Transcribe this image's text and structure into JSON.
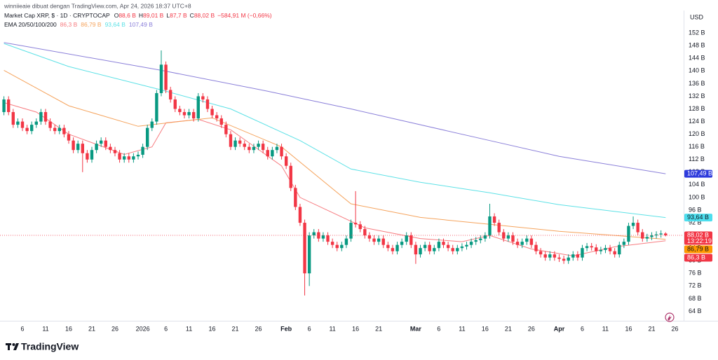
{
  "header": {
    "credit": "winniieaie dibuat dengan TradingView.com, Apr 24, 2026 18:37 UTC+8",
    "symbol": "Market Cap XRP, $ · 1D · CRYPTOCAP",
    "ohlc": [
      {
        "key": "O",
        "value": "88,6 B"
      },
      {
        "key": "H",
        "value": "89,01 B"
      },
      {
        "key": "L",
        "value": "87,7 B"
      },
      {
        "key": "C",
        "value": "88,02 B"
      }
    ],
    "change": "−584,91 M (−0,66%)",
    "indicator": "EMA 20/50/100/200",
    "currency": "USD"
  },
  "chart_data": {
    "type": "candlestick",
    "up_color": "#089981",
    "down_color": "#f23645",
    "xlim": [
      -0.85,
      146.9
    ],
    "ylim": [
      61,
      155.8
    ],
    "grid": false,
    "xticks": [
      {
        "value": 4,
        "label": "6"
      },
      {
        "value": 9,
        "label": "11"
      },
      {
        "value": 14,
        "label": "16"
      },
      {
        "value": 19,
        "label": "21"
      },
      {
        "value": 24,
        "label": "26"
      },
      {
        "value": 30,
        "label": "2026"
      },
      {
        "value": 35,
        "label": "6"
      },
      {
        "value": 40,
        "label": "11"
      },
      {
        "value": 45,
        "label": "16"
      },
      {
        "value": 50,
        "label": "21"
      },
      {
        "value": 55,
        "label": "26"
      },
      {
        "value": 61,
        "label": "Feb"
      },
      {
        "value": 66,
        "label": "6"
      },
      {
        "value": 71,
        "label": "11"
      },
      {
        "value": 76,
        "label": "16"
      },
      {
        "value": 81,
        "label": "21"
      },
      {
        "value": 89,
        "label": "Mar"
      },
      {
        "value": 94,
        "label": "6"
      },
      {
        "value": 99,
        "label": "11"
      },
      {
        "value": 104,
        "label": "16"
      },
      {
        "value": 109,
        "label": "21"
      },
      {
        "value": 114,
        "label": "26"
      },
      {
        "value": 120,
        "label": "Apr"
      },
      {
        "value": 125,
        "label": "6"
      },
      {
        "value": 130,
        "label": "11"
      },
      {
        "value": 135,
        "label": "16"
      },
      {
        "value": 140,
        "label": "21"
      },
      {
        "value": 145,
        "label": "26"
      }
    ],
    "yticks": [
      {
        "value": 64,
        "label": "64 B"
      },
      {
        "value": 68,
        "label": "68 B"
      },
      {
        "value": 72,
        "label": "72 B"
      },
      {
        "value": 76,
        "label": "76 B"
      },
      {
        "value": 80,
        "label": "80 B"
      },
      {
        "value": 84,
        "label": "84 B"
      },
      {
        "value": 88,
        "label": "88 B"
      },
      {
        "value": 92,
        "label": "92 B"
      },
      {
        "value": 96,
        "label": "96 B"
      },
      {
        "value": 100,
        "label": "100 B"
      },
      {
        "value": 104,
        "label": "104 B"
      },
      {
        "value": 108,
        "label": "108 B"
      },
      {
        "value": 112,
        "label": "112 B"
      },
      {
        "value": 116,
        "label": "116 B"
      },
      {
        "value": 120,
        "label": "120 B"
      },
      {
        "value": 124,
        "label": "124 B"
      },
      {
        "value": 128,
        "label": "128 B"
      },
      {
        "value": 132,
        "label": "132 B"
      },
      {
        "value": 136,
        "label": "136 B"
      },
      {
        "value": 140,
        "label": "140 B"
      },
      {
        "value": 144,
        "label": "144 B"
      },
      {
        "value": 148,
        "label": "148 B"
      },
      {
        "value": 152,
        "label": "152 B"
      }
    ],
    "open": [
      127,
      131,
      127,
      123,
      124,
      122,
      121,
      123,
      124,
      127,
      124,
      122,
      121,
      122,
      120,
      118,
      115,
      117,
      114,
      112,
      115,
      117,
      118,
      116,
      115,
      114,
      112,
      113,
      112,
      113,
      113.5,
      116,
      122,
      124,
      133,
      142,
      134,
      131,
      128,
      127,
      126,
      127,
      125,
      132,
      131,
      128,
      126,
      125,
      123,
      120,
      116,
      118,
      117,
      116,
      115,
      116,
      117,
      115,
      113,
      115,
      116,
      113,
      110,
      103,
      97,
      92,
      76,
      88,
      89,
      87,
      88,
      86,
      85,
      84,
      85,
      87,
      92,
      91.5,
      90,
      88,
      87,
      86,
      87,
      85,
      84,
      83,
      85,
      86,
      88,
      85,
      82,
      84,
      85,
      83,
      84,
      86,
      85,
      84,
      83,
      84,
      84.5,
      85,
      86,
      86.5,
      87,
      88,
      94,
      92,
      89,
      87,
      88,
      86,
      85,
      86,
      87,
      85,
      83,
      82,
      81,
      82,
      81,
      80.6,
      80,
      81,
      82,
      81,
      84,
      84.6,
      84.2,
      83,
      83.4,
      84,
      83,
      82,
      85,
      86,
      91,
      92,
      89,
      87,
      87.5,
      88,
      88.3,
      88.6
    ],
    "high": [
      132,
      132,
      128,
      125,
      125,
      123,
      124,
      125,
      128,
      128,
      125,
      123,
      123,
      123,
      121,
      119,
      118,
      118,
      115,
      116,
      118,
      119,
      119,
      117,
      116,
      115,
      114,
      114,
      114,
      114.5,
      117,
      123,
      125,
      134,
      146.5,
      143,
      135,
      132,
      129,
      128,
      128,
      128,
      133,
      133,
      132,
      129,
      127,
      126,
      124,
      121,
      119,
      119,
      118,
      117,
      117,
      118,
      118,
      116,
      116,
      117,
      117,
      114,
      111,
      104,
      98,
      93,
      89,
      90,
      90,
      89,
      89,
      87,
      86,
      86,
      88,
      93,
      102,
      92.5,
      91,
      89,
      88,
      88,
      88,
      86,
      85,
      86,
      87,
      89,
      89,
      86,
      85,
      86,
      86,
      85,
      87,
      87,
      86,
      85,
      85,
      85.5,
      86,
      87,
      87.5,
      88,
      89,
      98,
      95,
      93,
      90,
      89,
      89,
      87,
      87,
      88,
      88,
      86,
      84,
      83,
      83,
      83,
      82,
      81.6,
      82,
      83,
      83,
      85,
      85.6,
      85.6,
      85.2,
      84.4,
      85,
      85,
      84,
      86,
      87,
      92,
      94,
      93,
      90,
      88.5,
      89,
      89.3,
      89.6,
      89.01
    ],
    "low": [
      126,
      126,
      122,
      122,
      121,
      120,
      120,
      122,
      123,
      123,
      121,
      120,
      120,
      119,
      117,
      114,
      114,
      108,
      111,
      111,
      114,
      116,
      115,
      114,
      113,
      111,
      111,
      111,
      111,
      112,
      112.5,
      115,
      121,
      123,
      132,
      133,
      130,
      127,
      126,
      125,
      125,
      124,
      124,
      130,
      127,
      125,
      124,
      122,
      119,
      115,
      115,
      116,
      115,
      114,
      114,
      115,
      114,
      112,
      112,
      114,
      112,
      109,
      102,
      96,
      91,
      69,
      72,
      87,
      86,
      86,
      85,
      84,
      83,
      83,
      84,
      86,
      90.5,
      89,
      87,
      86,
      85,
      85,
      84,
      83,
      82,
      82,
      84,
      85,
      84,
      79,
      81,
      83,
      82,
      82,
      83,
      84,
      83,
      82,
      82,
      83,
      83.5,
      84,
      85,
      85.5,
      86,
      87,
      91,
      88,
      86,
      86,
      85,
      84,
      84,
      85,
      84,
      82,
      81,
      80,
      80,
      80,
      79.6,
      79,
      79,
      80,
      80,
      80,
      83,
      83.2,
      82,
      82,
      82.4,
      82,
      81,
      81,
      84,
      85,
      90,
      88,
      86,
      86,
      86.5,
      87,
      87.3,
      87.7
    ],
    "close": [
      131,
      127,
      123,
      124,
      122,
      121,
      123,
      124,
      127,
      124,
      122,
      121,
      122,
      120,
      118,
      115,
      117,
      114,
      112,
      115,
      117,
      118,
      116,
      115,
      114,
      112,
      113,
      112,
      113,
      113.5,
      116,
      122,
      124,
      133,
      142,
      134,
      131,
      128,
      127,
      126,
      127,
      125,
      132,
      131,
      128,
      126,
      125,
      123,
      120,
      116,
      118,
      117,
      116,
      115,
      116,
      117,
      115,
      113,
      115,
      116,
      113,
      110,
      103,
      97,
      92,
      76,
      88,
      89,
      87,
      88,
      86,
      85,
      84,
      85,
      87,
      92,
      91.5,
      90,
      88,
      87,
      86,
      87,
      85,
      84,
      83,
      85,
      86,
      88,
      85,
      82,
      84,
      85,
      83,
      84,
      86,
      85,
      84,
      83,
      84,
      84.5,
      85,
      86,
      86.5,
      87,
      88,
      94,
      92,
      89,
      87,
      88,
      86,
      85,
      86,
      87,
      85,
      83,
      82,
      81,
      82,
      81,
      80.6,
      80,
      81,
      82,
      81,
      84,
      84.6,
      84.2,
      83,
      83.4,
      84,
      83,
      82,
      85,
      86,
      91,
      92,
      89,
      87,
      87.5,
      88,
      88.3,
      88.6,
      88.02
    ],
    "close_label": "88,02 B",
    "countdown": "13:22:19",
    "series": [
      {
        "color": "#f77c80",
        "x": [
          0,
          7,
          14,
          26,
          32,
          35,
          42,
          49,
          60,
          64,
          70,
          78,
          90,
          99,
          105,
          114,
          123,
          132,
          143
        ],
        "values": [
          130,
          127,
          120,
          113.6,
          116,
          123.6,
          124.7,
          121.4,
          110,
          100,
          95.9,
          90.4,
          87,
          86,
          88,
          83.7,
          81.5,
          84.4,
          86.3
        ],
        "last_label": "86,3 B",
        "price_label": "86,3 B",
        "label_color": "#f23645"
      },
      {
        "color": "#f5a35c",
        "x": [
          0,
          14,
          29,
          45,
          60,
          75,
          90,
          105,
          120,
          143
        ],
        "values": [
          140.2,
          129,
          122.5,
          125.2,
          116,
          98,
          93.7,
          91.5,
          89.3,
          86.79
        ],
        "last_label": "86,79 B",
        "price_label": "86,79 B",
        "label_color": "#ff9800"
      },
      {
        "color": "#5ce1e6",
        "x": [
          0,
          14,
          34,
          49,
          64,
          75,
          90,
          105,
          120,
          143
        ],
        "values": [
          148.7,
          141.4,
          134,
          128,
          118,
          109,
          104.8,
          101.5,
          97.7,
          93.64
        ],
        "last_label": "93,64 B",
        "price_label": "93,64 B",
        "label_color": "#4ddfee"
      },
      {
        "color": "#8a7fd9",
        "x": [
          0,
          34,
          57,
          75,
          105,
          120,
          143
        ],
        "values": [
          149,
          140.2,
          133.6,
          128,
          118,
          113,
          107.49
        ],
        "last_label": "107,49 B",
        "price_label": "107,49 B",
        "label_color": "#2e3bdc"
      }
    ]
  },
  "footer": {
    "brand": "TradingView"
  }
}
